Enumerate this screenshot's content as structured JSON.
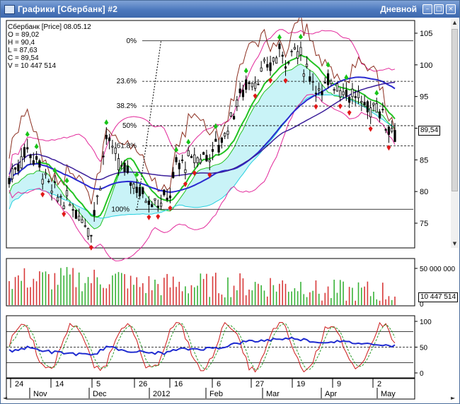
{
  "window": {
    "title": "Графики [Сбербанк] #2",
    "period": "Дневной",
    "buttons": {
      "minimize": "–",
      "maximize": "□",
      "close": "×"
    }
  },
  "legend": {
    "line1": "Сбербанк [Price] 08.05.12",
    "open": "O = 89,02",
    "high": "H = 90,4",
    "low": "L = 87,63",
    "close": "C = 89,54",
    "volume": "V = 10 447 514"
  },
  "price_panel": {
    "price_badge": "89,54",
    "fib_levels": [
      {
        "label": "0%",
        "price": 103.8
      },
      {
        "label": "23.6%",
        "price": 97.4
      },
      {
        "label": "38.2%",
        "price": 93.5
      },
      {
        "label": "50%",
        "price": 90.4
      },
      {
        "label": "61.8%",
        "price": 87.2
      },
      {
        "label": "100%",
        "price": 77.2
      }
    ],
    "y_ticks": [
      "105",
      "100",
      "95",
      "90",
      "85",
      "80",
      "75"
    ],
    "y_tick_values": [
      105,
      100,
      95,
      90,
      85,
      80,
      75
    ]
  },
  "volume_panel": {
    "y_tick": "50 000 000",
    "zero_tick": "0",
    "volume_badge": "10 447 514"
  },
  "oscillator_panel": {
    "y_ticks": [
      "100",
      "50",
      "0"
    ],
    "y_tick_values": [
      100,
      50,
      0
    ]
  },
  "time_axis": {
    "day_labels": [
      "24",
      "14",
      "5",
      "26",
      "16",
      "6",
      "27",
      "19",
      "9",
      "2"
    ],
    "month_labels": [
      "Nov",
      "Dec",
      "2012",
      "Feb",
      "Mar",
      "Apr",
      "May"
    ]
  },
  "colors": {
    "titlebar": "#4c78bd",
    "candle": "#000000",
    "ma_fast": "#22c322",
    "ma_slow": "#2a2ad0",
    "bollinger": "#e2289a",
    "envelope": "#8b2d1e",
    "cloud": "#27d0e0",
    "fractal_up": "#18c418",
    "fractal_down": "#e01818",
    "volume_up": "#39b339",
    "volume_down": "#d83a3a",
    "stoch_k": "#cc1a1a",
    "stoch_d": "#2a9a2a",
    "rsi": "#1f2bd0"
  }
}
